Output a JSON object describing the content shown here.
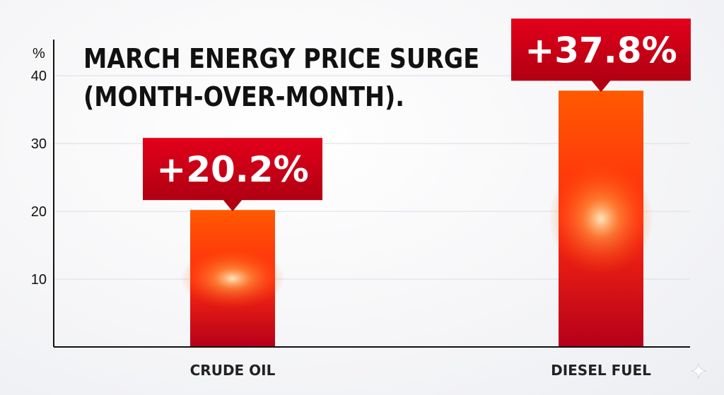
{
  "chart_data": {
    "type": "bar",
    "title_lines": [
      "MARCH ENERGY PRICE SURGE",
      "(MONTH-OVER-MONTH)."
    ],
    "unit_label": "%",
    "categories": [
      "CRUDE OIL",
      "DIESEL FUEL"
    ],
    "values": [
      20.2,
      37.8
    ],
    "data_labels": [
      "+20.2%",
      "+37.8%"
    ],
    "yticks": [
      10,
      20,
      30,
      40
    ],
    "ylim": [
      0,
      47
    ],
    "grid": true,
    "legend": false,
    "colors": {
      "bar_top": "#ff5a00",
      "bar_mid": "#ff2a10",
      "bar_bottom": "#b5001a",
      "bar_glow": "#fff1c8",
      "label_bg_top": "#e3001b",
      "label_bg_bottom": "#b00012",
      "grid": "#d9dde4",
      "axis": "#111111"
    }
  },
  "decor": {
    "corner_icon": "sparkle-icon"
  }
}
